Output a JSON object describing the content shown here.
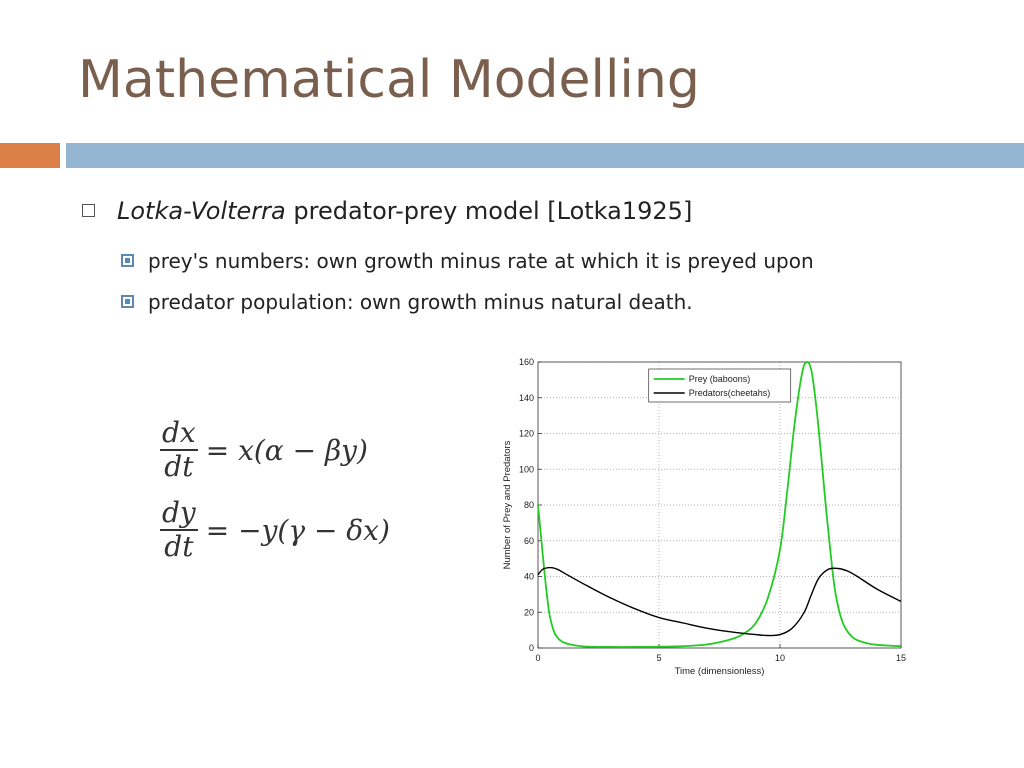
{
  "slide": {
    "title": "Mathematical Modelling",
    "bullet1_italic": "Lotka-Volterra",
    "bullet1_rest": " predator-prey model [Lotka1925]",
    "sub1": "prey's numbers: own growth minus rate at which it is preyed upon",
    "sub2": "predator population: own growth minus natural death."
  },
  "equations": {
    "eq1_num": "dx",
    "eq1_den": "dt",
    "eq1_rhs": "= x(α − βy)",
    "eq2_num": "dy",
    "eq2_den": "dt",
    "eq2_rhs": "= −y(γ − δx)"
  },
  "colors": {
    "title": "#7a5f4e",
    "accent_orange": "#dd8047",
    "accent_blue": "#94b6d2",
    "prey": "#22cc22",
    "predator": "#000000"
  },
  "chart_data": {
    "type": "line",
    "xlabel": "Time (dimensionless)",
    "ylabel": "Number of Prey and Predators",
    "xlim": [
      0,
      15
    ],
    "ylim": [
      0,
      160
    ],
    "xticks": [
      0,
      5,
      10,
      15
    ],
    "yticks": [
      0,
      20,
      40,
      60,
      80,
      100,
      120,
      140,
      160
    ],
    "grid": true,
    "legend": "top-right",
    "series": [
      {
        "name": "Prey (baboons)",
        "x": [
          0,
          0.1,
          0.2,
          0.3,
          0.4,
          0.5,
          0.7,
          1,
          1.5,
          2,
          3,
          4,
          5,
          6,
          7,
          8,
          8.5,
          9,
          9.5,
          10,
          10.3,
          10.6,
          10.9,
          11.1,
          11.3,
          11.5,
          11.7,
          11.9,
          12.1,
          12.3,
          12.6,
          13,
          13.5,
          14,
          15
        ],
        "y": [
          80,
          66,
          52,
          38,
          26,
          17,
          8,
          3.5,
          1.5,
          0.8,
          0.6,
          0.6,
          0.7,
          1,
          2,
          5,
          8,
          14,
          28,
          55,
          88,
          125,
          153,
          160,
          155,
          135,
          108,
          78,
          52,
          30,
          14,
          6,
          3,
          1.8,
          1
        ]
      },
      {
        "name": "Predators(cheetahs)",
        "x": [
          0,
          0.2,
          0.5,
          0.8,
          1.2,
          2,
          3,
          4,
          5,
          6,
          7,
          8,
          9,
          9.5,
          10,
          10.5,
          11,
          11.3,
          11.6,
          12,
          12.4,
          12.8,
          13.2,
          14,
          15
        ],
        "y": [
          41,
          44,
          45,
          44,
          41,
          35,
          28,
          22,
          17,
          14,
          11,
          9,
          7.5,
          7,
          7.5,
          11,
          20,
          30,
          39,
          44,
          44.5,
          43,
          40,
          33,
          26
        ]
      }
    ]
  }
}
